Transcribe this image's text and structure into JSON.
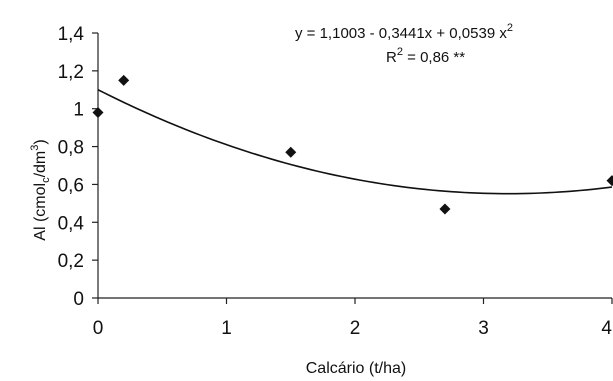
{
  "chart_data": {
    "type": "scatter",
    "xlabel": "Calcário (t/ha)",
    "ylabel_main": "Al (cmol",
    "ylabel_sub": "c",
    "ylabel_tail": "/dm",
    "ylabel_sup": "3",
    "ylabel_close": ")",
    "xlim": [
      0,
      4
    ],
    "ylim": [
      0,
      1.4
    ],
    "x_ticks": [
      0,
      1,
      2,
      3,
      4
    ],
    "x_tick_labels": [
      "0",
      "1",
      "2",
      "3",
      "4"
    ],
    "y_ticks": [
      0,
      0.2,
      0.4,
      0.6,
      0.8,
      1.0,
      1.2,
      1.4
    ],
    "y_tick_labels": [
      "0",
      "0,2",
      "0,4",
      "0,6",
      "0,8",
      "1",
      "1,2",
      "1,4"
    ],
    "grid": false,
    "series": [
      {
        "marker": "diamond",
        "x": [
          0,
          0.2,
          1.5,
          2.7,
          4.0
        ],
        "y": [
          0.98,
          1.15,
          0.77,
          0.47,
          0.62
        ]
      }
    ],
    "trendline": {
      "type": "polynomial",
      "coefficients": [
        1.1003,
        -0.3441,
        0.0539
      ],
      "x_range": [
        0,
        4
      ]
    },
    "equation_main": "y = 1,1003 - 0,3441x + 0,0539 x",
    "equation_sup": "2",
    "r2_main": "R",
    "r2_sup": "2",
    "r2_tail": " = 0,86 **",
    "colors": {
      "marker": "#111111",
      "line": "#111111",
      "axis": "#222222"
    }
  }
}
